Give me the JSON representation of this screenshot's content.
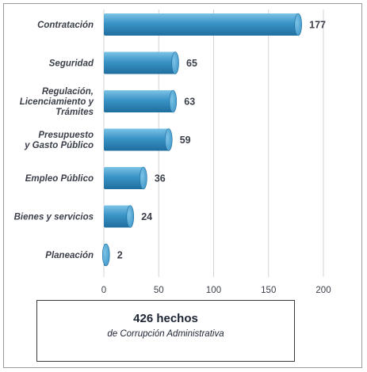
{
  "chart_data": {
    "type": "bar",
    "orientation": "horizontal",
    "categories": [
      [
        "Contratación"
      ],
      [
        "Seguridad"
      ],
      [
        "Regulación,",
        "Licenciamiento y",
        "Trámites"
      ],
      [
        "Presupuesto",
        "y Gasto Público"
      ],
      [
        "Empleo Público"
      ],
      [
        "Bienes y servicios"
      ],
      [
        "Planeación"
      ]
    ],
    "values": [
      177,
      65,
      63,
      59,
      36,
      24,
      2
    ],
    "xlim": [
      0,
      200
    ],
    "xticks": [
      0,
      50,
      100,
      150,
      200
    ],
    "grid": "vertical",
    "bar_color": "#3a93c6",
    "bar_color_light": "#7cc3e6",
    "bar_color_dark": "#1f6e9e"
  },
  "summary": {
    "total": "426 hechos",
    "subtitle": "de Corrupción Administrativa"
  }
}
